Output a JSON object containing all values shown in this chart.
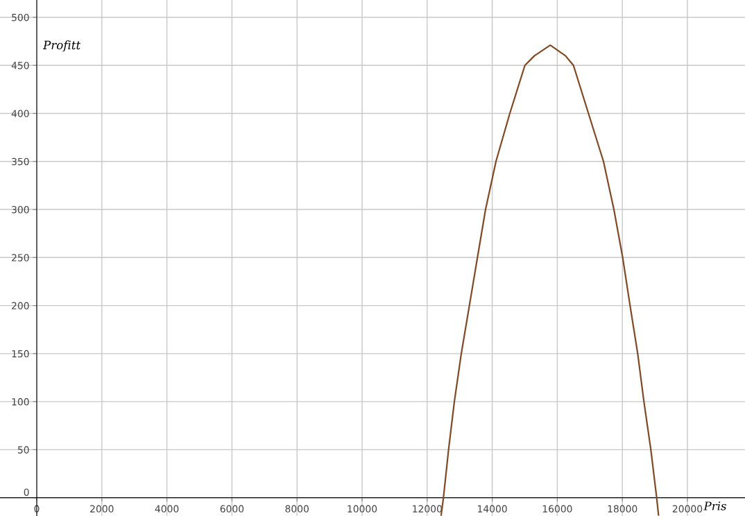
{
  "chart_data": {
    "type": "line",
    "xlabel": "Pris",
    "ylabel": "Profitt",
    "x": [
      12431,
      12501,
      12658,
      12836,
      13049,
      13298,
      13546,
      13795,
      14115,
      14541,
      15004,
      15300,
      15785,
      16250,
      16497,
      16958,
      17420,
      17740,
      18010,
      18237,
      18472,
      18663,
      18876,
      19055,
      19111
    ],
    "series": [
      {
        "color": "#7f4a25",
        "values": [
          -18,
          0,
          50,
          100,
          150,
          200,
          250,
          300,
          350,
          400,
          450,
          460,
          471,
          460,
          450,
          400,
          350,
          300,
          250,
          200,
          150,
          100,
          50,
          0,
          -18
        ]
      }
    ],
    "xlim": [
      -1130,
      21770
    ],
    "ylim": [
      -19,
      518
    ],
    "xticks": [
      0,
      2000,
      4000,
      6000,
      8000,
      10000,
      12000,
      14000,
      16000,
      18000,
      20000
    ],
    "yticks": [
      0,
      50,
      100,
      150,
      200,
      250,
      300,
      350,
      400,
      450,
      500
    ],
    "grid": true,
    "legend": false,
    "marker": "none",
    "line_style": "solid"
  }
}
